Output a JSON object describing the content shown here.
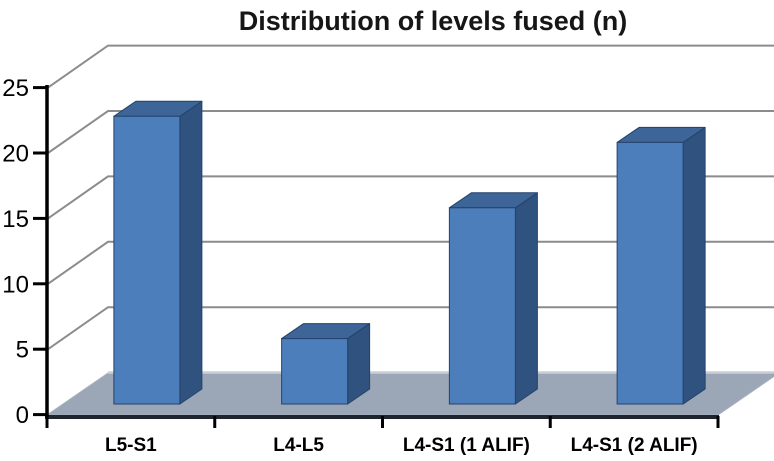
{
  "chart_data": {
    "type": "bar",
    "variant": "3d-column",
    "title": "Distribution of levels fused (n)",
    "categories": [
      "L5-S1",
      "L4-L5",
      "L4-S1 (1 ALIF)",
      "L4-S1 (2 ALIF)"
    ],
    "values": [
      22,
      5,
      15,
      20
    ],
    "xlabel": "",
    "ylabel": "",
    "ylim": [
      0,
      25
    ],
    "yticks": [
      0,
      5,
      10,
      15,
      20,
      25
    ],
    "grid": true,
    "legend": "none",
    "colors": {
      "bar_front": "#4C7EBB",
      "bar_top": "#3E6597",
      "bar_side": "#2F527F",
      "bar_outline": "#24436B",
      "floor": "#9BA6B6",
      "floor_back_highlight": "#C9CFD8",
      "floor_front_edge": "#1E252E",
      "gridline": "#8C8C8C",
      "axis": "#000000",
      "title_text": "#161616",
      "background": "#FFFFFF"
    }
  }
}
